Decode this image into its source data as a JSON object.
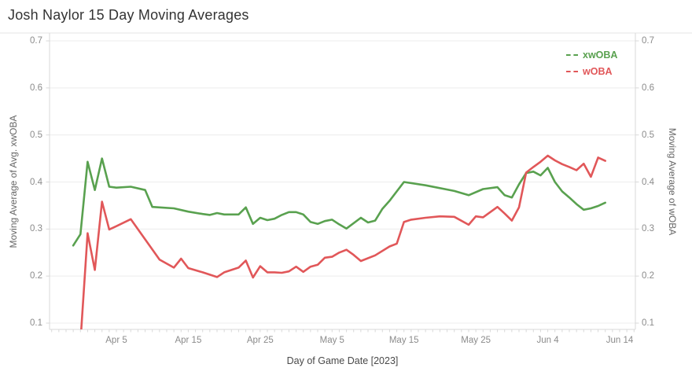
{
  "chart_data": {
    "type": "line",
    "title": "Josh Naylor 15 Day Moving Averages",
    "x_axis": {
      "title": "Day of Game Date [2023]",
      "tick_labels": [
        "Apr 5",
        "Apr 15",
        "Apr 25",
        "May 5",
        "May 15",
        "May 25",
        "Jun 4",
        "Jun 14"
      ],
      "range": [
        "Mar 27",
        "Jun 16"
      ],
      "minor_tick_interval_days": 1
    },
    "y_axis_left": {
      "title": "Moving Average of Avg. xwOBA",
      "ticks": [
        0.1,
        0.2,
        0.3,
        0.4,
        0.5,
        0.6,
        0.7
      ],
      "range": [
        0.086,
        0.717
      ]
    },
    "y_axis_right": {
      "title": "Moving Average of wOBA",
      "ticks": [
        0.1,
        0.2,
        0.3,
        0.4,
        0.5,
        0.6,
        0.7
      ],
      "range": [
        0.086,
        0.717
      ]
    },
    "grid": true,
    "legend": {
      "position": "top-right-inside",
      "items": [
        {
          "label": "xwOBA",
          "color": "#59a14f"
        },
        {
          "label": "wOBA",
          "color": "#e15759"
        }
      ]
    },
    "series": [
      {
        "name": "xwOBA",
        "color": "#59a14f",
        "points": [
          [
            "Mar 30",
            0.265
          ],
          [
            "Mar 31",
            0.289
          ],
          [
            "Apr 1",
            0.443
          ],
          [
            "Apr 2",
            0.383
          ],
          [
            "Apr 3",
            0.45
          ],
          [
            "Apr 4",
            0.39
          ],
          [
            "Apr 5",
            0.388
          ],
          [
            "Apr 7",
            0.39
          ],
          [
            "Apr 9",
            0.383
          ],
          [
            "Apr 10",
            0.347
          ],
          [
            "Apr 11",
            0.346
          ],
          [
            "Apr 13",
            0.344
          ],
          [
            "Apr 15",
            0.337
          ],
          [
            "Apr 17",
            0.332
          ],
          [
            "Apr 18",
            0.33
          ],
          [
            "Apr 19",
            0.334
          ],
          [
            "Apr 20",
            0.331
          ],
          [
            "Apr 22",
            0.331
          ],
          [
            "Apr 23",
            0.346
          ],
          [
            "Apr 24",
            0.311
          ],
          [
            "Apr 25",
            0.324
          ],
          [
            "Apr 26",
            0.319
          ],
          [
            "Apr 27",
            0.322
          ],
          [
            "Apr 28",
            0.33
          ],
          [
            "Apr 29",
            0.336
          ],
          [
            "Apr 30",
            0.336
          ],
          [
            "May 1",
            0.331
          ],
          [
            "May 2",
            0.315
          ],
          [
            "May 3",
            0.311
          ],
          [
            "May 4",
            0.317
          ],
          [
            "May 5",
            0.32
          ],
          [
            "May 6",
            0.31
          ],
          [
            "May 7",
            0.301
          ],
          [
            "May 9",
            0.324
          ],
          [
            "May 10",
            0.314
          ],
          [
            "May 11",
            0.318
          ],
          [
            "May 12",
            0.343
          ],
          [
            "May 13",
            0.36
          ],
          [
            "May 15",
            0.4
          ],
          [
            "May 18",
            0.393
          ],
          [
            "May 22",
            0.381
          ],
          [
            "May 24",
            0.372
          ],
          [
            "May 26",
            0.385
          ],
          [
            "May 28",
            0.389
          ],
          [
            "May 29",
            0.372
          ],
          [
            "May 30",
            0.367
          ],
          [
            "May 31",
            0.395
          ],
          [
            "Jun 1",
            0.419
          ],
          [
            "Jun 2",
            0.422
          ],
          [
            "Jun 3",
            0.414
          ],
          [
            "Jun 4",
            0.43
          ],
          [
            "Jun 5",
            0.4
          ],
          [
            "Jun 6",
            0.38
          ],
          [
            "Jun 7",
            0.367
          ],
          [
            "Jun 8",
            0.353
          ],
          [
            "Jun 9",
            0.341
          ],
          [
            "Jun 10",
            0.344
          ],
          [
            "Jun 11",
            0.349
          ],
          [
            "Jun 12",
            0.356
          ]
        ]
      },
      {
        "name": "wOBA",
        "color": "#e15759",
        "points": [
          [
            "Mar 31",
            0.06
          ],
          [
            "Apr 1",
            0.291
          ],
          [
            "Apr 2",
            0.213
          ],
          [
            "Apr 3",
            0.358
          ],
          [
            "Apr 4",
            0.299
          ],
          [
            "Apr 5",
            0.306
          ],
          [
            "Apr 7",
            0.321
          ],
          [
            "Apr 9",
            0.278
          ],
          [
            "Apr 11",
            0.235
          ],
          [
            "Apr 13",
            0.218
          ],
          [
            "Apr 14",
            0.237
          ],
          [
            "Apr 15",
            0.217
          ],
          [
            "Apr 17",
            0.208
          ],
          [
            "Apr 18",
            0.203
          ],
          [
            "Apr 19",
            0.198
          ],
          [
            "Apr 20",
            0.208
          ],
          [
            "Apr 22",
            0.218
          ],
          [
            "Apr 23",
            0.233
          ],
          [
            "Apr 24",
            0.197
          ],
          [
            "Apr 25",
            0.221
          ],
          [
            "Apr 26",
            0.208
          ],
          [
            "Apr 27",
            0.208
          ],
          [
            "Apr 28",
            0.207
          ],
          [
            "Apr 29",
            0.21
          ],
          [
            "Apr 30",
            0.22
          ],
          [
            "May 1",
            0.209
          ],
          [
            "May 2",
            0.22
          ],
          [
            "May 3",
            0.224
          ],
          [
            "May 4",
            0.239
          ],
          [
            "May 5",
            0.241
          ],
          [
            "May 6",
            0.25
          ],
          [
            "May 7",
            0.256
          ],
          [
            "May 8",
            0.245
          ],
          [
            "May 9",
            0.232
          ],
          [
            "May 11",
            0.244
          ],
          [
            "May 13",
            0.263
          ],
          [
            "May 14",
            0.269
          ],
          [
            "May 15",
            0.315
          ],
          [
            "May 16",
            0.32
          ],
          [
            "May 18",
            0.324
          ],
          [
            "May 20",
            0.327
          ],
          [
            "May 22",
            0.326
          ],
          [
            "May 24",
            0.309
          ],
          [
            "May 25",
            0.327
          ],
          [
            "May 26",
            0.325
          ],
          [
            "May 28",
            0.347
          ],
          [
            "May 29",
            0.333
          ],
          [
            "May 30",
            0.318
          ],
          [
            "May 31",
            0.346
          ],
          [
            "Jun 1",
            0.42
          ],
          [
            "Jun 2",
            0.432
          ],
          [
            "Jun 3",
            0.443
          ],
          [
            "Jun 4",
            0.456
          ],
          [
            "Jun 5",
            0.446
          ],
          [
            "Jun 6",
            0.438
          ],
          [
            "Jun 7",
            0.432
          ],
          [
            "Jun 8",
            0.425
          ],
          [
            "Jun 9",
            0.439
          ],
          [
            "Jun 10",
            0.411
          ],
          [
            "Jun 11",
            0.452
          ],
          [
            "Jun 12",
            0.445
          ]
        ]
      }
    ]
  }
}
